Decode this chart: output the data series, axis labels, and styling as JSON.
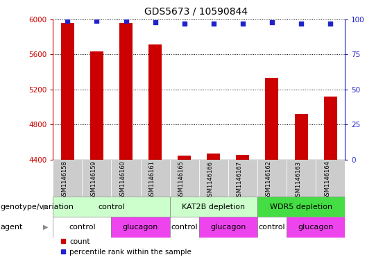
{
  "title": "GDS5673 / 10590844",
  "samples": [
    "GSM1146158",
    "GSM1146159",
    "GSM1146160",
    "GSM1146161",
    "GSM1146165",
    "GSM1146166",
    "GSM1146167",
    "GSM1146162",
    "GSM1146163",
    "GSM1146164"
  ],
  "counts": [
    5960,
    5630,
    5960,
    5710,
    4450,
    4470,
    4455,
    5330,
    4920,
    5120
  ],
  "percentiles": [
    99,
    99,
    99,
    98,
    97,
    97,
    97,
    98,
    97,
    97
  ],
  "ylim_left": [
    4400,
    6000
  ],
  "ylim_right": [
    0,
    100
  ],
  "yticks_left": [
    4400,
    4800,
    5200,
    5600,
    6000
  ],
  "yticks_right": [
    0,
    25,
    50,
    75,
    100
  ],
  "bar_color": "#cc0000",
  "dot_color": "#2222cc",
  "bar_width": 0.45,
  "genotype_groups": [
    {
      "label": "control",
      "start": 0,
      "end": 4,
      "color": "#ccffcc"
    },
    {
      "label": "KAT2B depletion",
      "start": 4,
      "end": 7,
      "color": "#ccffcc"
    },
    {
      "label": "WDR5 depletion",
      "start": 7,
      "end": 10,
      "color": "#44dd44"
    }
  ],
  "agent_groups": [
    {
      "label": "control",
      "start": 0,
      "end": 2,
      "color": "#ffffff"
    },
    {
      "label": "glucagon",
      "start": 2,
      "end": 4,
      "color": "#ee44ee"
    },
    {
      "label": "control",
      "start": 4,
      "end": 5,
      "color": "#ffffff"
    },
    {
      "label": "glucagon",
      "start": 5,
      "end": 7,
      "color": "#ee44ee"
    },
    {
      "label": "control",
      "start": 7,
      "end": 8,
      "color": "#ffffff"
    },
    {
      "label": "glucagon",
      "start": 8,
      "end": 10,
      "color": "#ee44ee"
    }
  ],
  "genotype_label": "genotype/variation",
  "agent_label": "agent",
  "legend_count": "count",
  "legend_percentile": "percentile rank within the sample",
  "title_fontsize": 10,
  "tick_fontsize": 7.5,
  "sample_fontsize": 6,
  "left_axis_color": "#cc0000",
  "right_axis_color": "#2222cc",
  "sample_bg_color": "#cccccc",
  "row_label_fontsize": 8,
  "row_text_fontsize": 8
}
